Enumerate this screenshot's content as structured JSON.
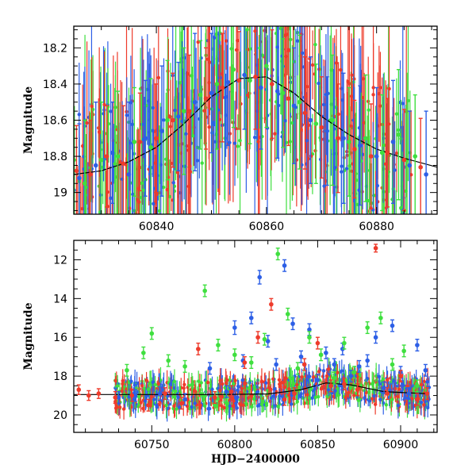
{
  "chart_data": [
    {
      "type": "scatter",
      "title": "",
      "xlabel": "",
      "ylabel": "Magnitude",
      "xlim": [
        60825,
        60891
      ],
      "ylim": [
        19.12,
        18.08
      ],
      "y_inverted": true,
      "error_bars": true,
      "x_ticks": [
        60840,
        60860,
        60880
      ],
      "y_ticks": [
        18.2,
        18.4,
        18.6,
        18.8,
        19
      ],
      "y_tick_labels": [
        "18.2",
        "18.4",
        "18.6",
        "18.8",
        "19"
      ],
      "model_curve": {
        "color": "#000000",
        "x": [
          60825,
          60830,
          60835,
          60840,
          60845,
          60850,
          60855,
          60860,
          60865,
          60870,
          60875,
          60880,
          60885,
          60891
        ],
        "y": [
          18.9,
          18.88,
          18.83,
          18.75,
          18.62,
          18.47,
          18.37,
          18.36,
          18.45,
          18.58,
          18.68,
          18.76,
          18.81,
          18.86
        ]
      },
      "series": [
        {
          "color": "#2d5fe6",
          "x": [
            60826,
            60829,
            60832,
            60835,
            60838,
            60841,
            60844,
            60847,
            60850,
            60853,
            60856,
            60859,
            60862,
            60865,
            60868,
            60871,
            60874,
            60877,
            60880,
            60883,
            60886,
            60889
          ],
          "y": [
            18.92,
            18.85,
            18.78,
            18.9,
            18.7,
            18.66,
            18.58,
            18.5,
            18.45,
            18.39,
            18.35,
            18.42,
            18.44,
            18.52,
            18.6,
            18.66,
            18.7,
            18.74,
            18.8,
            18.72,
            18.85,
            18.9
          ],
          "yerr": [
            0.3,
            0.35,
            0.28,
            0.4,
            0.32,
            0.36,
            0.3,
            0.38,
            0.33,
            0.35,
            0.3,
            0.34,
            0.37,
            0.32,
            0.35,
            0.3,
            0.36,
            0.33,
            0.38,
            0.34,
            0.3,
            0.35
          ]
        },
        {
          "color": "#3fdf3f",
          "x": [
            60827,
            60830,
            60833,
            60836,
            60839,
            60842,
            60845,
            60848,
            60851,
            60854,
            60857,
            60860,
            60863,
            60866,
            60869,
            60872,
            60875,
            60878,
            60881,
            60884,
            60887
          ],
          "y": [
            18.95,
            18.82,
            18.8,
            18.72,
            18.75,
            18.6,
            18.55,
            18.46,
            18.4,
            18.32,
            18.38,
            18.3,
            18.45,
            18.5,
            18.62,
            18.6,
            18.72,
            18.7,
            18.78,
            18.68,
            18.8
          ],
          "yerr": [
            0.35,
            0.32,
            0.36,
            0.3,
            0.38,
            0.33,
            0.35,
            0.3,
            0.36,
            0.32,
            0.35,
            0.34,
            0.3,
            0.37,
            0.33,
            0.36,
            0.3,
            0.35,
            0.32,
            0.36,
            0.34
          ]
        },
        {
          "color": "#ee3b2b",
          "x": [
            60825.5,
            60828,
            60831,
            60834,
            60837,
            60840,
            60843,
            60846,
            60849,
            60852,
            60855,
            60858,
            60861,
            60864,
            60867,
            60870,
            60873,
            60876,
            60879,
            60882,
            60885,
            60888
          ],
          "y": [
            18.88,
            18.9,
            18.8,
            18.84,
            18.72,
            18.7,
            18.6,
            18.55,
            18.48,
            18.42,
            18.38,
            18.36,
            18.4,
            18.48,
            18.56,
            18.64,
            18.7,
            18.76,
            18.8,
            18.78,
            18.82,
            18.86
          ],
          "yerr": [
            0.25,
            0.3,
            0.28,
            0.32,
            0.27,
            0.3,
            0.26,
            0.31,
            0.28,
            0.3,
            0.27,
            0.29,
            0.3,
            0.26,
            0.31,
            0.28,
            0.3,
            0.27,
            0.29,
            0.3,
            0.28,
            0.27
          ]
        }
      ]
    },
    {
      "type": "scatter",
      "title": "",
      "xlabel": "HJD−2400000",
      "ylabel": "Magnitude",
      "xlim": [
        60703,
        60922
      ],
      "ylim": [
        20.9,
        11.0
      ],
      "y_inverted": true,
      "error_bars": true,
      "x_ticks": [
        60750,
        60800,
        60850,
        60900
      ],
      "y_ticks": [
        12,
        14,
        16,
        18,
        20
      ],
      "y_tick_labels": [
        "12",
        "14",
        "16",
        "18",
        "20"
      ],
      "model_curve": {
        "color": "#000000",
        "x": [
          60703,
          60730,
          60760,
          60790,
          60820,
          60840,
          60855,
          60870,
          60890,
          60915
        ],
        "y": [
          18.95,
          18.95,
          18.95,
          18.95,
          18.92,
          18.7,
          18.35,
          18.45,
          18.8,
          18.9
        ]
      },
      "series": [
        {
          "color": "#2d5fe6",
          "x": [
            60730,
            60740,
            60755,
            60770,
            60785,
            60795,
            60800,
            60805,
            60810,
            60815,
            60820,
            60825,
            60830,
            60835,
            60840,
            60845,
            60850,
            60855,
            60860,
            60865,
            60870,
            60875,
            60880,
            60885,
            60890,
            60895,
            60900,
            60905,
            60910,
            60915
          ],
          "y": [
            19.1,
            19.0,
            18.9,
            19.2,
            17.6,
            18.8,
            15.5,
            17.2,
            15.0,
            12.9,
            16.2,
            17.4,
            12.3,
            15.3,
            17.0,
            15.6,
            18.2,
            16.8,
            17.4,
            16.6,
            18.0,
            17.5,
            17.2,
            16.0,
            18.6,
            15.4,
            17.8,
            18.9,
            16.4,
            17.7
          ],
          "yerr": [
            0.3,
            0.3,
            0.35,
            0.3,
            0.3,
            0.3,
            0.35,
            0.3,
            0.3,
            0.35,
            0.3,
            0.3,
            0.3,
            0.3,
            0.3,
            0.3,
            0.3,
            0.3,
            0.3,
            0.3,
            0.3,
            0.3,
            0.3,
            0.3,
            0.3,
            0.3,
            0.3,
            0.3,
            0.3,
            0.3
          ]
        },
        {
          "color": "#3fdf3f",
          "x": [
            60735,
            60745,
            60750,
            60760,
            60770,
            60782,
            60790,
            60800,
            60810,
            60818,
            60826,
            60832,
            60838,
            60845,
            60852,
            60860,
            60866,
            60872,
            60880,
            60888,
            60895,
            60902,
            60910
          ],
          "y": [
            17.7,
            16.8,
            15.8,
            17.2,
            17.5,
            13.6,
            16.4,
            16.9,
            17.3,
            16.1,
            11.7,
            14.8,
            17.6,
            16.0,
            16.9,
            18.1,
            16.3,
            17.8,
            15.5,
            15.0,
            17.4,
            16.7,
            18.5
          ],
          "yerr": [
            0.3,
            0.3,
            0.3,
            0.3,
            0.3,
            0.3,
            0.3,
            0.3,
            0.3,
            0.3,
            0.3,
            0.3,
            0.3,
            0.3,
            0.3,
            0.3,
            0.3,
            0.3,
            0.3,
            0.3,
            0.3,
            0.3,
            0.3
          ]
        },
        {
          "color": "#ee3b2b",
          "x": [
            60706,
            60712,
            60718,
            60728,
            60738,
            60748,
            60758,
            60768,
            60778,
            60788,
            60798,
            60806,
            60814,
            60822,
            60830,
            60836,
            60842,
            60850,
            60858,
            60866,
            60874,
            60885,
            60892,
            60900,
            60910,
            60916
          ],
          "y": [
            18.7,
            19.0,
            18.9,
            19.1,
            19.0,
            19.5,
            18.9,
            19.4,
            16.6,
            19.1,
            18.8,
            17.3,
            16.0,
            14.3,
            19.2,
            18.9,
            17.4,
            16.3,
            18.5,
            18.4,
            18.7,
            11.4,
            18.9,
            18.0,
            19.2,
            18.9
          ],
          "yerr": [
            0.25,
            0.25,
            0.25,
            0.3,
            0.3,
            0.3,
            0.3,
            0.3,
            0.3,
            0.3,
            0.3,
            0.3,
            0.3,
            0.3,
            0.3,
            0.3,
            0.3,
            0.3,
            0.3,
            0.3,
            0.3,
            0.2,
            0.3,
            0.3,
            0.3,
            0.3
          ]
        }
      ]
    }
  ]
}
